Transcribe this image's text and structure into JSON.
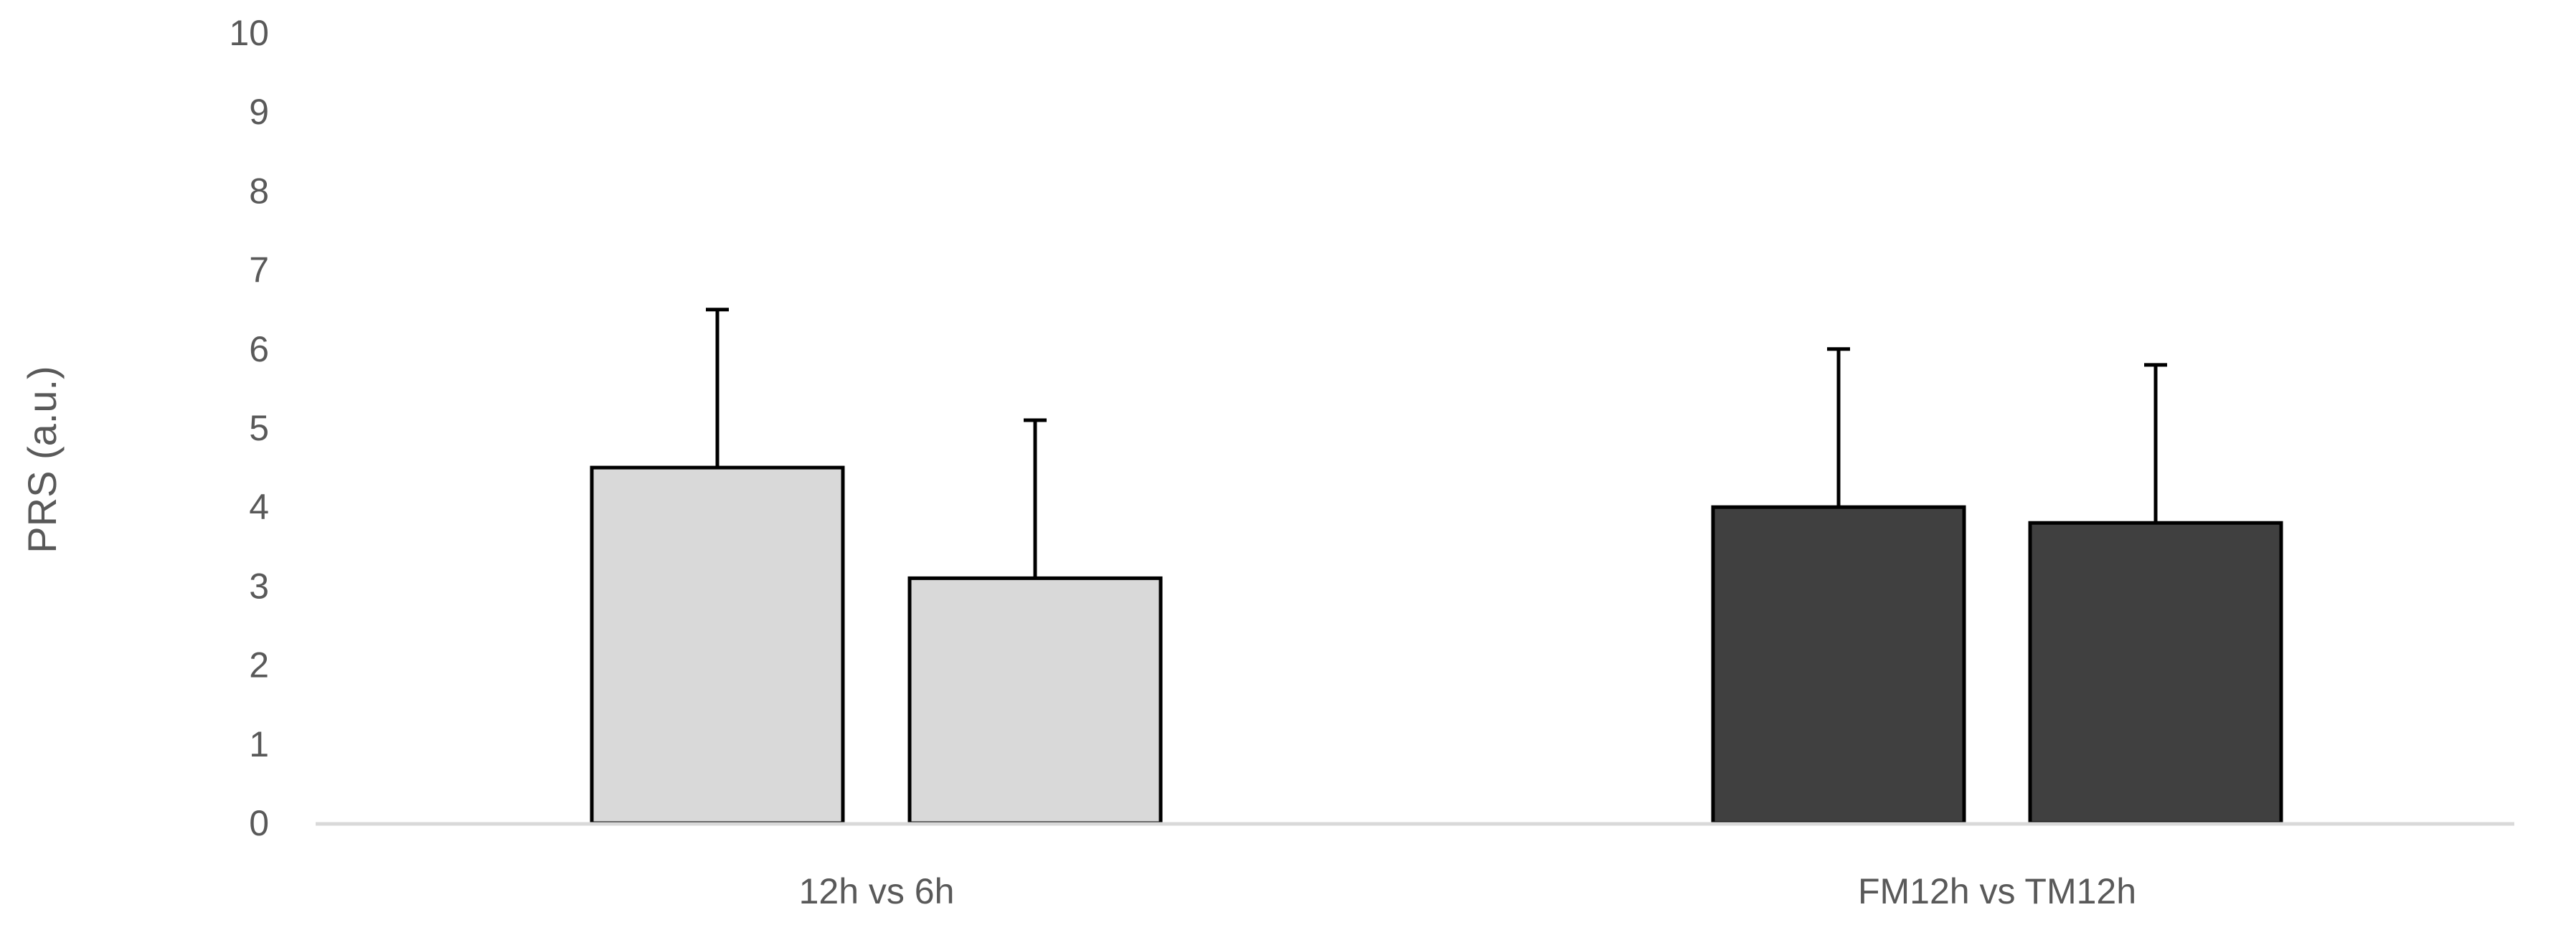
{
  "chart_data": {
    "type": "bar",
    "title": "",
    "xlabel": "",
    "ylabel": "PRS (a.u.)",
    "ylim": [
      0,
      10
    ],
    "yticks": [
      0,
      1,
      2,
      3,
      4,
      5,
      6,
      7,
      8,
      9,
      10
    ],
    "grid": false,
    "legend": "none",
    "categories": [
      "12h vs 6h",
      "FM12h vs TM12h"
    ],
    "bars": [
      {
        "category": "12h vs 6h",
        "value": 4.5,
        "error": 2.0,
        "color": "#d9d9d9"
      },
      {
        "category": "12h vs 6h",
        "value": 3.1,
        "error": 2.0,
        "color": "#d9d9d9"
      },
      {
        "category": "FM12h vs TM12h",
        "value": 4.0,
        "error": 2.0,
        "color": "#404040"
      },
      {
        "category": "FM12h vs TM12h",
        "value": 3.8,
        "error": 2.0,
        "color": "#404040"
      }
    ],
    "colors": {
      "axis": "#d9d9d9",
      "text": "#595959",
      "outline": "#000000"
    }
  }
}
